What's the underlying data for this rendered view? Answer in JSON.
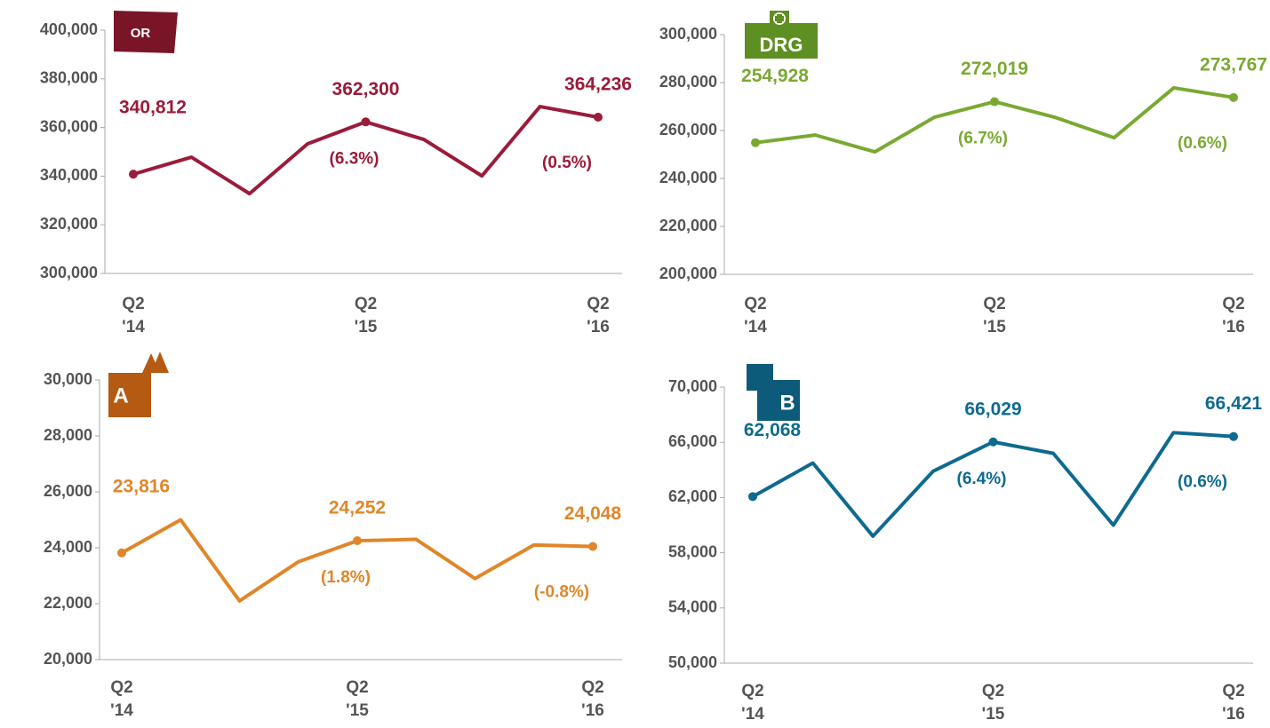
{
  "chart_data": [
    {
      "type": "line",
      "icon_label": "OR",
      "color": "#9b1b3a",
      "categories": [
        "Q2\n'14",
        null,
        null,
        null,
        "Q2\n'15",
        null,
        null,
        null,
        "Q2\n'16"
      ],
      "values": [
        340812,
        347800,
        332800,
        353300,
        362300,
        355100,
        340100,
        368600,
        364236
      ],
      "value_labels": [
        "340,812",
        null,
        null,
        null,
        "362,300",
        null,
        null,
        null,
        "364,236"
      ],
      "change_labels": [
        null,
        null,
        null,
        null,
        "(6.3%)",
        null,
        null,
        null,
        "(0.5%)"
      ],
      "ylim": [
        300000,
        400000
      ],
      "yticks": [
        {
          "value": 300000,
          "label": "300,000"
        },
        {
          "value": 320000,
          "label": "320,000"
        },
        {
          "value": 340000,
          "label": "340,000"
        },
        {
          "value": 360000,
          "label": "360,000"
        },
        {
          "value": 380000,
          "label": "380,000"
        },
        {
          "value": 400000,
          "label": "400,000"
        }
      ]
    },
    {
      "type": "line",
      "icon_label": "DRG",
      "color": "#7aa932",
      "categories": [
        "Q2\n'14",
        null,
        null,
        null,
        "Q2\n'15",
        null,
        null,
        null,
        "Q2\n'16"
      ],
      "values": [
        254928,
        258100,
        251100,
        265600,
        272019,
        265600,
        257000,
        277800,
        273767
      ],
      "value_labels": [
        "254,928",
        null,
        null,
        null,
        "272,019",
        null,
        null,
        null,
        "273,767"
      ],
      "change_labels": [
        null,
        null,
        null,
        null,
        "(6.7%)",
        null,
        null,
        null,
        "(0.6%)"
      ],
      "ylim": [
        200000,
        300000
      ],
      "yticks": [
        {
          "value": 200000,
          "label": "200,000"
        },
        {
          "value": 220000,
          "label": "220,000"
        },
        {
          "value": 240000,
          "label": "240,000"
        },
        {
          "value": 260000,
          "label": "260,000"
        },
        {
          "value": 280000,
          "label": "280,000"
        },
        {
          "value": 300000,
          "label": "300,000"
        }
      ]
    },
    {
      "type": "line",
      "icon_label": "A",
      "color": "#e0862a",
      "categories": [
        "Q2\n'14",
        null,
        null,
        null,
        "Q2\n'15",
        null,
        null,
        null,
        "Q2\n'16"
      ],
      "values": [
        23816,
        25000,
        22100,
        23500,
        24252,
        24300,
        22900,
        24100,
        24048
      ],
      "value_labels": [
        "23,816",
        null,
        null,
        null,
        "24,252",
        null,
        null,
        null,
        "24,048"
      ],
      "change_labels": [
        null,
        null,
        null,
        null,
        "(1.8%)",
        null,
        null,
        null,
        "(-0.8%)"
      ],
      "ylim": [
        20000,
        30000
      ],
      "yticks": [
        {
          "value": 20000,
          "label": "20,000"
        },
        {
          "value": 22000,
          "label": "22,000"
        },
        {
          "value": 24000,
          "label": "24,000"
        },
        {
          "value": 26000,
          "label": "26,000"
        },
        {
          "value": 28000,
          "label": "28,000"
        },
        {
          "value": 30000,
          "label": "30,000"
        }
      ]
    },
    {
      "type": "line",
      "icon_label": "B",
      "color": "#0e6a8f",
      "categories": [
        "Q2\n'14",
        null,
        null,
        null,
        "Q2\n'15",
        null,
        null,
        null,
        "Q2\n'16"
      ],
      "values": [
        62068,
        64500,
        59200,
        63900,
        66029,
        65200,
        60000,
        66700,
        66421
      ],
      "value_labels": [
        "62,068",
        null,
        null,
        null,
        "66,029",
        null,
        null,
        null,
        "66,421"
      ],
      "change_labels": [
        null,
        null,
        null,
        null,
        "(6.4%)",
        null,
        null,
        null,
        "(0.6%)"
      ],
      "ylim": [
        50000,
        70000
      ],
      "yticks": [
        {
          "value": 50000,
          "label": "50,000"
        },
        {
          "value": 54000,
          "label": "54,000"
        },
        {
          "value": 58000,
          "label": "58,000"
        },
        {
          "value": 62000,
          "label": "62,000"
        },
        {
          "value": 66000,
          "label": "66,000"
        },
        {
          "value": 70000,
          "label": "70,000"
        }
      ]
    }
  ]
}
